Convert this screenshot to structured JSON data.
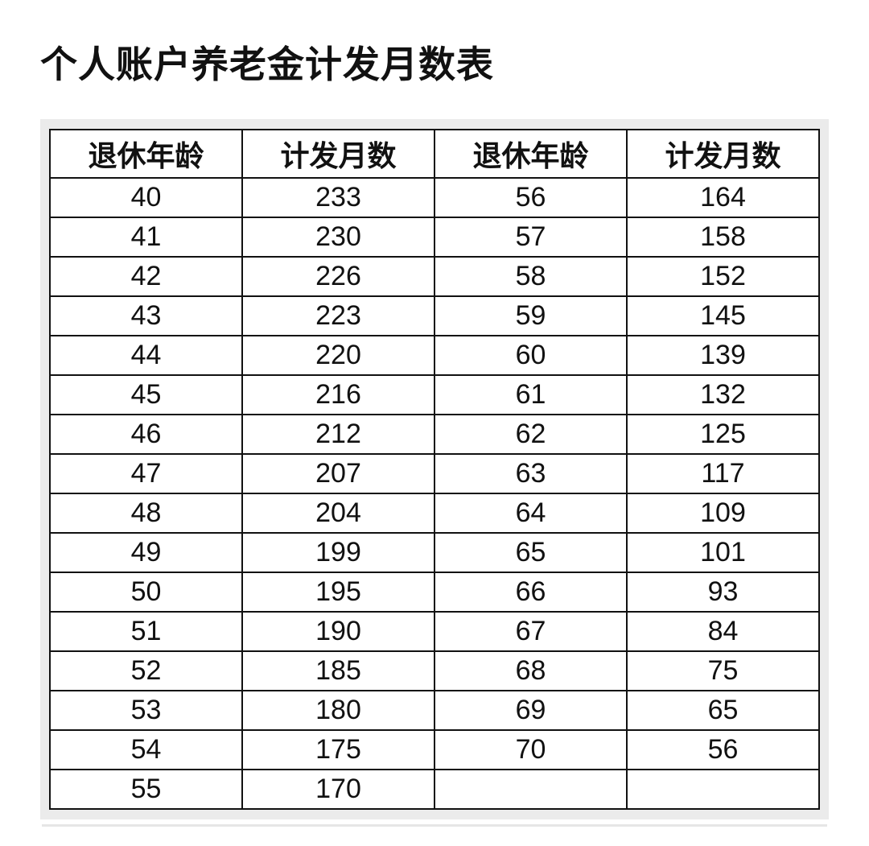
{
  "title": "个人账户养老金计发月数表",
  "table": {
    "headers": [
      "退休年龄",
      "计发月数",
      "退休年龄",
      "计发月数"
    ],
    "rows": [
      [
        "40",
        "233",
        "56",
        "164"
      ],
      [
        "41",
        "230",
        "57",
        "158"
      ],
      [
        "42",
        "226",
        "58",
        "152"
      ],
      [
        "43",
        "223",
        "59",
        "145"
      ],
      [
        "44",
        "220",
        "60",
        "139"
      ],
      [
        "45",
        "216",
        "61",
        "132"
      ],
      [
        "46",
        "212",
        "62",
        "125"
      ],
      [
        "47",
        "207",
        "63",
        "117"
      ],
      [
        "48",
        "204",
        "64",
        "109"
      ],
      [
        "49",
        "199",
        "65",
        "101"
      ],
      [
        "50",
        "195",
        "66",
        "93"
      ],
      [
        "51",
        "190",
        "67",
        "84"
      ],
      [
        "52",
        "185",
        "68",
        "75"
      ],
      [
        "53",
        "180",
        "69",
        "65"
      ],
      [
        "54",
        "175",
        "70",
        "56"
      ],
      [
        "55",
        "170",
        "",
        ""
      ]
    ]
  }
}
